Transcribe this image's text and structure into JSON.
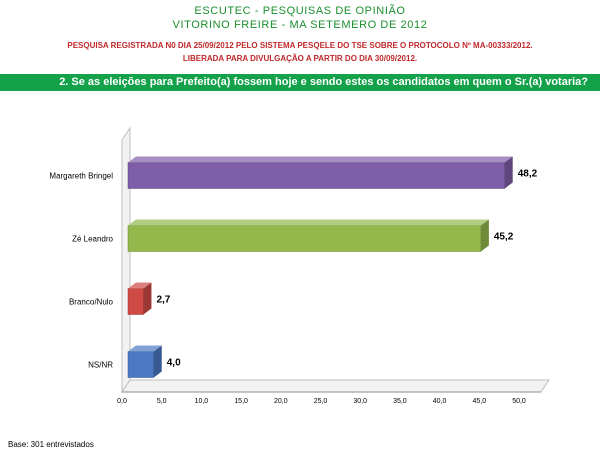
{
  "header": {
    "org": "ESCUTEC - PESQUISAS DE OPINIÃO",
    "subtitle": "VITORINO FREIRE - MA SETEMERO DE 2012",
    "registration": "PESQUISA REGISTRADA N0 DIA 25/09/2012 PELO SISTEMA PESQELE DO TSE SOBRE O PROTOCOLO Nº MA-00333/2012.",
    "release": "LIBERADA PARA DIVULGAÇÃO A PARTIR DO DIA 30/09/2012."
  },
  "question": "2. Se as eleições para Prefeito(a) fossem hoje e sendo estes os candidatos em quem o Sr.(a) votaria?",
  "footer": "Base: 301 entrevistados",
  "colors": {
    "header_green": "#1a8f2e",
    "header_red": "#c0282b",
    "question_bar": "#13a14a"
  },
  "chart_data": {
    "type": "bar",
    "orientation": "horizontal",
    "categories": [
      "Margareth Bringel",
      "Zé Leandro",
      "Branco/Nulo",
      "NS/NR"
    ],
    "values": [
      48.2,
      45.2,
      2.7,
      4.0
    ],
    "value_labels": [
      "48,2",
      "45,2",
      "2,7",
      "4,0"
    ],
    "colors": [
      "#7e5ea8",
      "#93b94c",
      "#cf4a45",
      "#4a78c2"
    ],
    "xlim": [
      0,
      50
    ],
    "xticks": [
      "0,0",
      "5,0",
      "10,0",
      "15,0",
      "20,0",
      "25,0",
      "30,0",
      "35,0",
      "40,0",
      "45,0",
      "50,0"
    ],
    "grid": false,
    "legend": "none"
  }
}
